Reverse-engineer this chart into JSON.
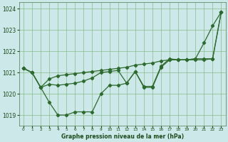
{
  "title": "Graphe pression niveau de la mer (hPa)",
  "x": [
    0,
    1,
    2,
    3,
    4,
    5,
    6,
    7,
    8,
    9,
    10,
    11,
    12,
    13,
    14,
    15,
    16,
    17,
    18,
    19,
    20,
    21,
    22,
    23
  ],
  "line_zigzag": [
    1021.2,
    1021.0,
    1020.3,
    1019.6,
    1019.0,
    1019.0,
    1019.15,
    1019.15,
    1019.15,
    1020.0,
    1020.4,
    1020.4,
    1020.5,
    1021.05,
    1020.3,
    1020.3,
    1021.25,
    1021.6,
    1021.6,
    1021.6,
    1021.65,
    1022.4,
    1023.2,
    1023.85
  ],
  "line_smooth": [
    1021.2,
    1021.0,
    1020.3,
    1020.7,
    1020.85,
    1020.9,
    1020.95,
    1021.0,
    1021.05,
    1021.1,
    1021.15,
    1021.2,
    1021.25,
    1021.35,
    1021.4,
    1021.45,
    1021.55,
    1021.6,
    1021.6,
    1021.6,
    1021.65,
    1021.65,
    1021.65,
    1023.85
  ],
  "line_mid": [
    1021.2,
    1021.0,
    1020.3,
    1020.45,
    1020.4,
    1020.45,
    1020.5,
    1020.6,
    1020.75,
    1021.0,
    1021.05,
    1021.1,
    1020.5,
    1021.05,
    1020.35,
    1020.35,
    1021.3,
    1021.65,
    1021.6,
    1021.6,
    1021.6,
    1021.6,
    1021.65,
    1023.85
  ],
  "bg_color": "#cce8e8",
  "line_color": "#2d6a2d",
  "grid_color": "#88bb88",
  "text_color": "#1a4a1a",
  "ylim_min": 1018.5,
  "ylim_max": 1024.3,
  "yticks": [
    1019,
    1020,
    1021,
    1022,
    1023,
    1024
  ]
}
